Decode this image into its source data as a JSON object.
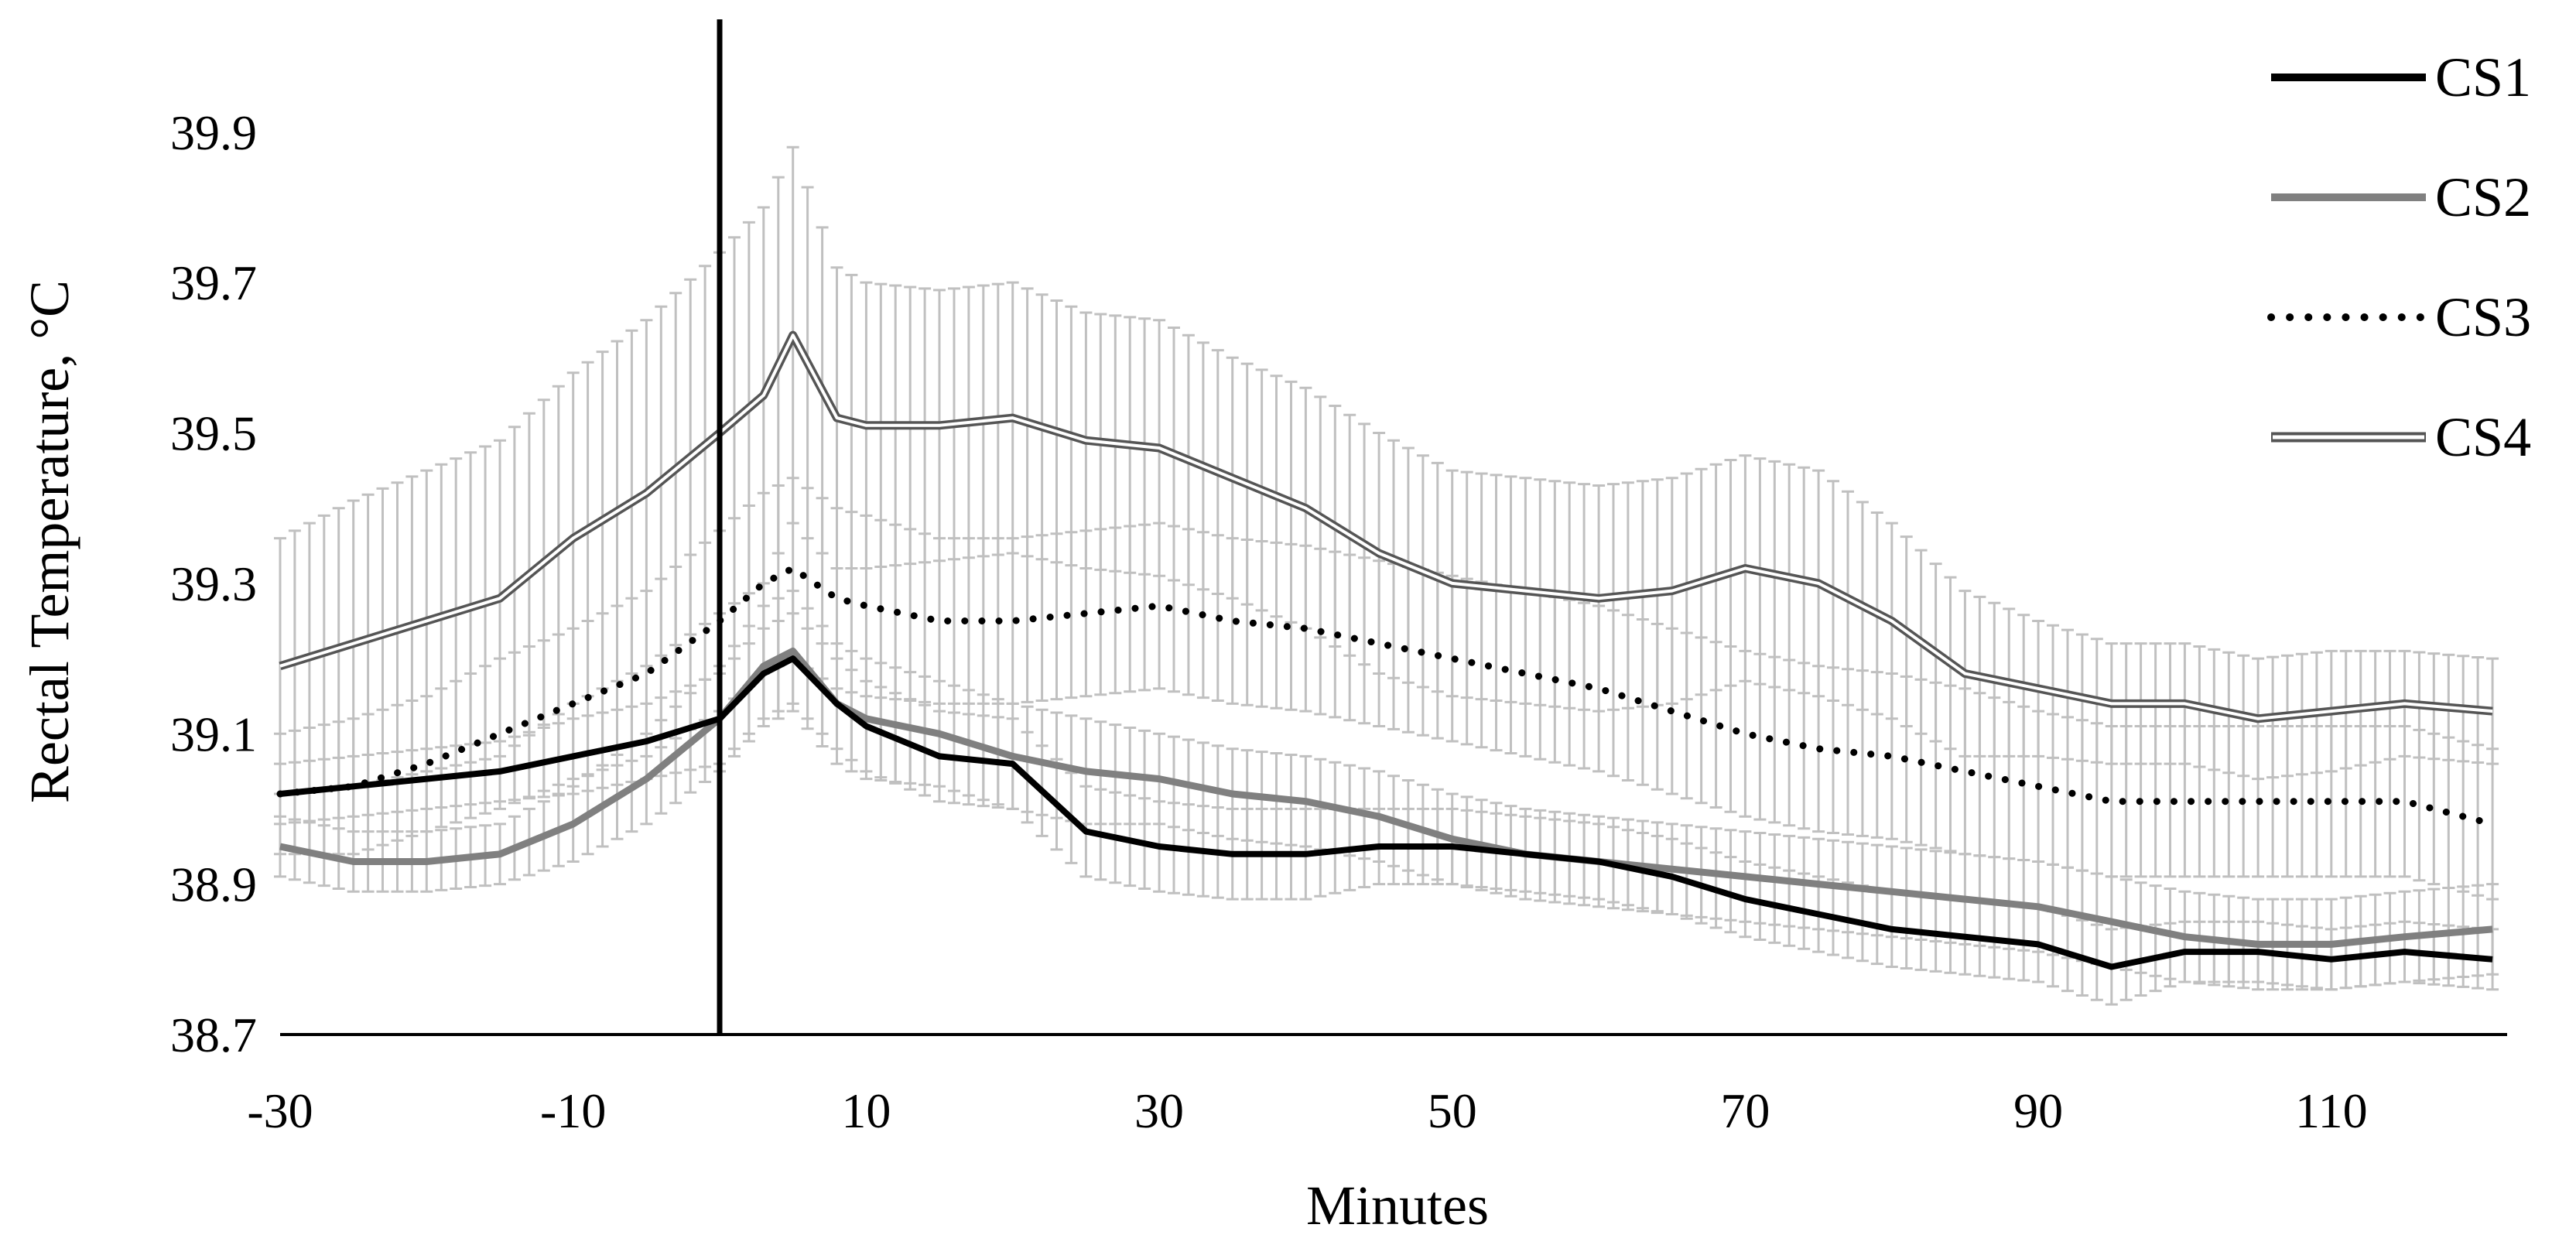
{
  "chart_data": {
    "type": "line",
    "title": "",
    "xlabel": "Minutes",
    "ylabel": "Rectal Temperature, °C",
    "xlim": [
      -30,
      122
    ],
    "ylim": [
      38.7,
      40.05
    ],
    "x_ticks": [
      -30,
      -10,
      10,
      30,
      50,
      70,
      90,
      110
    ],
    "x_tick_labels": [
      "-30",
      "-10",
      "10",
      "30",
      "50",
      "70",
      "90",
      "110"
    ],
    "y_ticks": [
      38.7,
      38.9,
      39.1,
      39.3,
      39.5,
      39.7,
      39.9
    ],
    "y_tick_labels": [
      "38.7",
      "38.9",
      "39.1",
      "39.3",
      "39.5",
      "39.7",
      "39.9"
    ],
    "reference_line_x": 0,
    "grid": false,
    "legend_position": "top-right",
    "error_bar_color": "#c0c0c0",
    "x": [
      -30,
      -25,
      -20,
      -15,
      -10,
      -5,
      0,
      3,
      5,
      8,
      10,
      15,
      20,
      25,
      30,
      35,
      40,
      45,
      50,
      55,
      60,
      65,
      70,
      75,
      80,
      85,
      90,
      95,
      100,
      105,
      110,
      115,
      121
    ],
    "series": [
      {
        "name": "CS1",
        "style": "solid",
        "color": "#000000",
        "values": [
          39.02,
          39.03,
          39.04,
          39.05,
          39.07,
          39.09,
          39.12,
          39.18,
          39.2,
          39.14,
          39.11,
          39.07,
          39.06,
          38.97,
          38.95,
          38.94,
          38.94,
          38.95,
          38.95,
          38.94,
          38.93,
          38.91,
          38.88,
          38.86,
          38.84,
          38.83,
          38.82,
          38.79,
          38.81,
          38.81,
          38.8,
          38.81,
          38.8
        ],
        "errors": [
          0.04,
          0.04,
          0.04,
          0.04,
          0.05,
          0.05,
          0.06,
          0.06,
          0.06,
          0.06,
          0.06,
          0.06,
          0.06,
          0.06,
          0.06,
          0.06,
          0.06,
          0.05,
          0.05,
          0.05,
          0.05,
          0.05,
          0.05,
          0.05,
          0.05,
          0.05,
          0.05,
          0.05,
          0.04,
          0.04,
          0.04,
          0.04,
          0.04
        ]
      },
      {
        "name": "CS2",
        "style": "solid",
        "color": "#808080",
        "values": [
          38.95,
          38.93,
          38.93,
          38.94,
          38.98,
          39.04,
          39.12,
          39.19,
          39.21,
          39.14,
          39.12,
          39.1,
          39.07,
          39.05,
          39.04,
          39.02,
          39.01,
          38.99,
          38.96,
          38.94,
          38.93,
          38.92,
          38.91,
          38.9,
          38.89,
          38.88,
          38.87,
          38.85,
          38.83,
          38.82,
          38.82,
          38.83,
          38.84
        ],
        "errors": [
          0.04,
          0.04,
          0.04,
          0.04,
          0.05,
          0.06,
          0.07,
          0.08,
          0.08,
          0.08,
          0.08,
          0.07,
          0.07,
          0.07,
          0.06,
          0.06,
          0.06,
          0.06,
          0.06,
          0.06,
          0.06,
          0.06,
          0.06,
          0.06,
          0.06,
          0.06,
          0.06,
          0.06,
          0.06,
          0.06,
          0.06,
          0.06,
          0.06
        ]
      },
      {
        "name": "CS3",
        "style": "dotted",
        "color": "#000000",
        "values": [
          39.02,
          39.03,
          39.06,
          39.1,
          39.14,
          39.18,
          39.25,
          39.3,
          39.32,
          39.28,
          39.27,
          39.25,
          39.25,
          39.26,
          39.27,
          39.25,
          39.24,
          39.22,
          39.2,
          39.18,
          39.16,
          39.13,
          39.1,
          39.08,
          39.07,
          39.05,
          39.03,
          39.01,
          39.01,
          39.01,
          39.01,
          39.01,
          38.98
        ],
        "errors": [
          0.08,
          0.09,
          0.09,
          0.1,
          0.1,
          0.11,
          0.12,
          0.12,
          0.12,
          0.12,
          0.12,
          0.11,
          0.11,
          0.11,
          0.11,
          0.11,
          0.11,
          0.11,
          0.11,
          0.11,
          0.11,
          0.11,
          0.11,
          0.11,
          0.11,
          0.11,
          0.1,
          0.1,
          0.1,
          0.1,
          0.1,
          0.1,
          0.1
        ]
      },
      {
        "name": "CS4",
        "style": "double",
        "color": "#555555",
        "values": [
          39.19,
          39.22,
          39.25,
          39.28,
          39.36,
          39.42,
          39.5,
          39.55,
          39.63,
          39.52,
          39.51,
          39.51,
          39.52,
          39.49,
          39.48,
          39.44,
          39.4,
          39.34,
          39.3,
          39.29,
          39.28,
          39.29,
          39.32,
          39.3,
          39.25,
          39.18,
          39.16,
          39.14,
          39.14,
          39.12,
          39.13,
          39.14,
          39.13
        ],
        "errors": [
          0.17,
          0.19,
          0.2,
          0.21,
          0.22,
          0.23,
          0.24,
          0.25,
          0.25,
          0.2,
          0.19,
          0.18,
          0.18,
          0.17,
          0.17,
          0.16,
          0.16,
          0.16,
          0.15,
          0.15,
          0.15,
          0.15,
          0.15,
          0.15,
          0.13,
          0.11,
          0.09,
          0.08,
          0.08,
          0.08,
          0.08,
          0.07,
          0.07
        ]
      }
    ]
  }
}
